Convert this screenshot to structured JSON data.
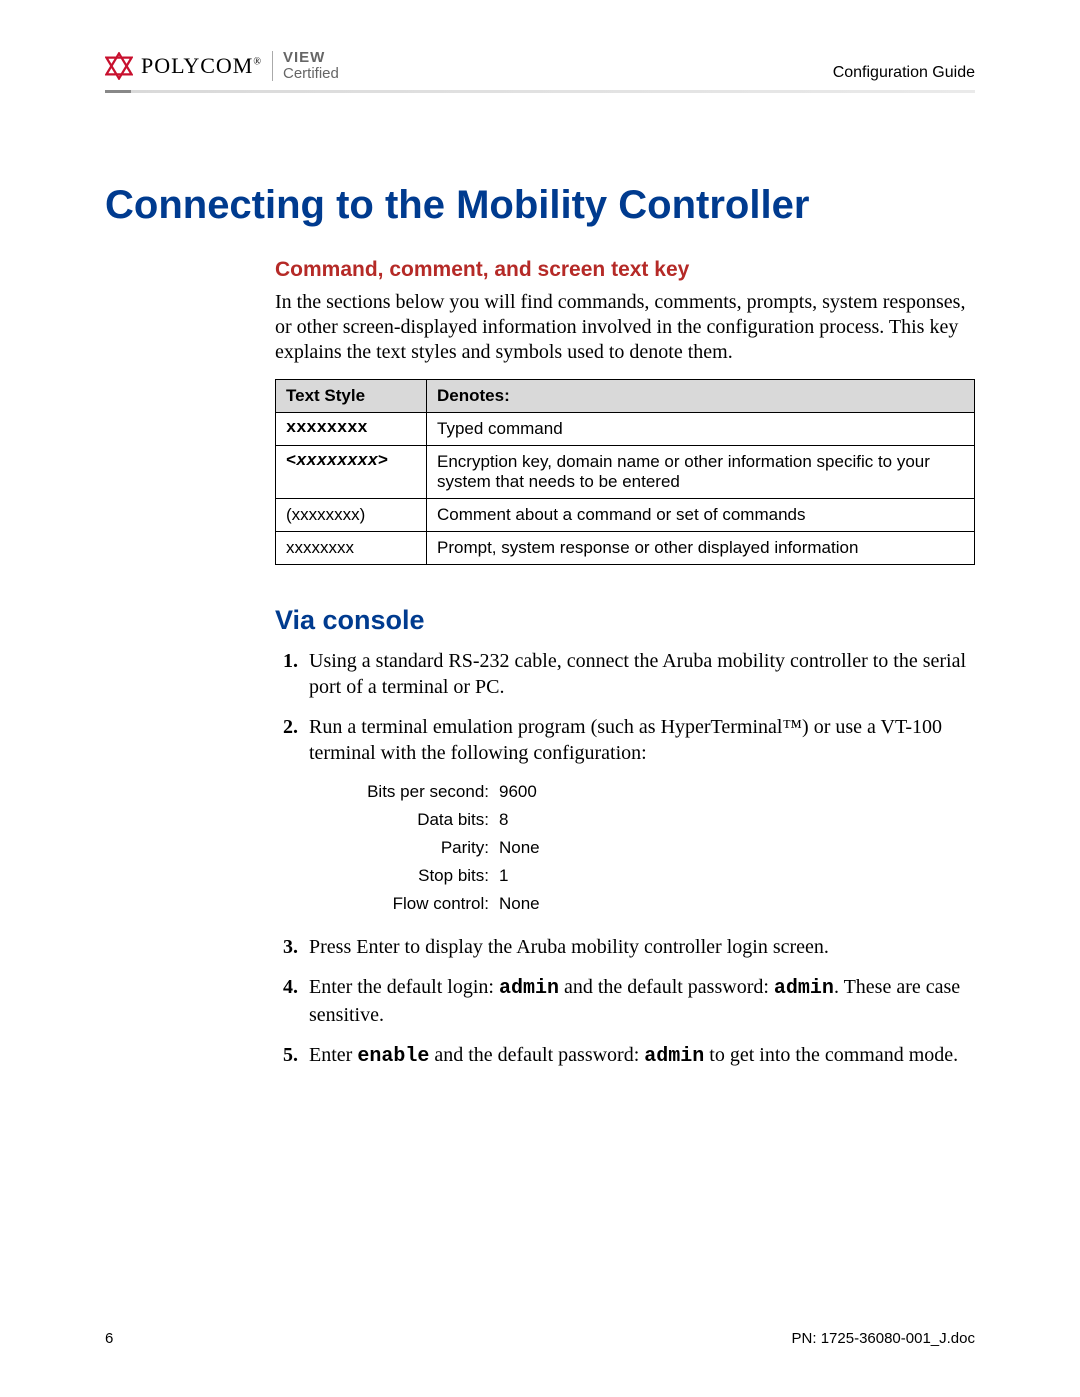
{
  "colors": {
    "heading_blue": "#003b8f",
    "subheading_red": "#b52a27",
    "header_text": "#000000",
    "badge_text": "#666666",
    "tkey_header_bg": "#d9d9d9",
    "border": "#000000",
    "background": "#ffffff",
    "logo_red": "#c8102e"
  },
  "header": {
    "brand": "POLYCOM",
    "badge_line1": "VIEW",
    "badge_line2": "Certified",
    "right": "Configuration Guide"
  },
  "h1": "Connecting to the Mobility Controller",
  "section1": {
    "heading": "Command, comment, and screen text key",
    "paragraph": "In the sections below you will find commands, comments, prompts, system responses, or other screen-displayed information involved in the configuration process. This key explains the text styles and symbols used to denote them."
  },
  "tkey": {
    "columns": [
      "Text Style",
      "Denotes:"
    ],
    "rows": [
      {
        "style_text": "xxxxxxxx",
        "style_class": "mono-bold",
        "denotes": "Typed command"
      },
      {
        "style_text": "<xxxxxxxx>",
        "style_class": "mono-bi",
        "denotes": "Encryption key, domain name or other information specific to your system that needs to be entered"
      },
      {
        "style_text": "(xxxxxxxx)",
        "style_class": "sans",
        "denotes": "Comment about a command or set of commands"
      },
      {
        "style_text": "xxxxxxxx",
        "style_class": "sans",
        "denotes": "Prompt, system response or other displayed information"
      }
    ]
  },
  "section2": {
    "heading": "Via console",
    "steps": {
      "s1": "Using a standard RS-232 cable, connect the Aruba mobility controller to the serial port of a terminal or PC.",
      "s2": "Run a terminal emulation program (such as HyperTerminal™) or use a VT-100 terminal with the following configuration:",
      "s3": "Press Enter to display the Aruba mobility controller login screen.",
      "s4_pre": "Enter the default login: ",
      "s4_login": "admin",
      "s4_mid": " and the default password: ",
      "s4_pass": "admin",
      "s4_post": ". These are case sensitive.",
      "s5_pre": "Enter ",
      "s5_cmd": "enable",
      "s5_mid": " and the default password: ",
      "s5_pass": "admin",
      "s5_post": " to get into the command mode."
    },
    "config": [
      {
        "k": "Bits per second:",
        "v": "9600"
      },
      {
        "k": "Data bits:",
        "v": "8"
      },
      {
        "k": "Parity:",
        "v": "None"
      },
      {
        "k": "Stop bits:",
        "v": "1"
      },
      {
        "k": "Flow control:",
        "v": "None"
      }
    ]
  },
  "footer": {
    "page_number": "6",
    "doc_id": "PN: 1725-36080-001_J.doc"
  }
}
